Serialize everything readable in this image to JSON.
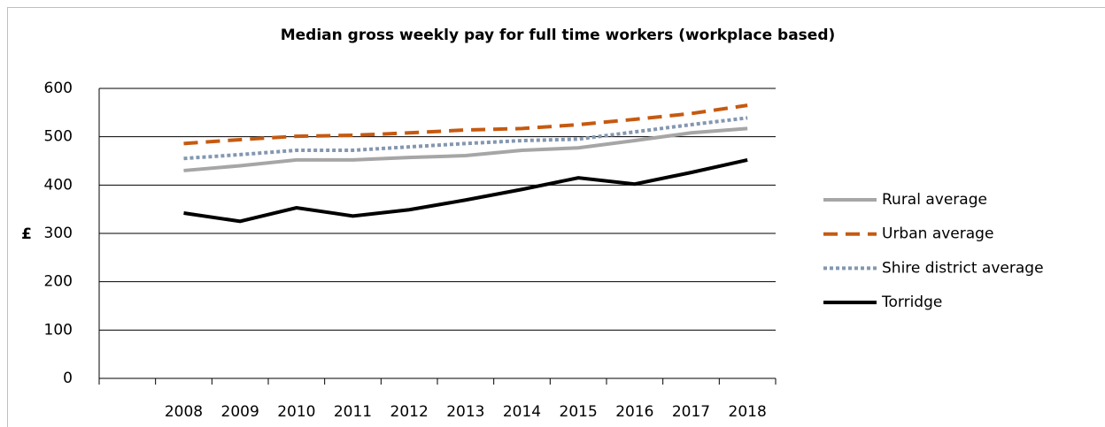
{
  "chart_data": {
    "type": "line",
    "title": "Median gross weekly pay for full time workers (workplace based)",
    "y_label": "£",
    "categories": [
      null,
      "2008",
      "2009",
      "2010",
      "2011",
      "2012",
      "2013",
      "2014",
      "2015",
      "2016",
      "2017",
      "2018"
    ],
    "series": [
      {
        "name": "Rural average",
        "color": "#a6a6a6",
        "dash": "solid",
        "values": [
          null,
          430,
          440,
          452,
          452,
          457,
          461,
          472,
          477,
          492,
          508,
          517
        ]
      },
      {
        "name": "Urban average",
        "color": "#c55a11",
        "dash": "dashed",
        "values": [
          null,
          486,
          494,
          501,
          503,
          508,
          514,
          517,
          525,
          536,
          548,
          565
        ]
      },
      {
        "name": "Shire district average",
        "color": "#8497b0",
        "dash": "dotted",
        "values": [
          null,
          455,
          463,
          472,
          472,
          479,
          486,
          492,
          495,
          510,
          525,
          539
        ]
      },
      {
        "name": "Torridge",
        "color": "#000000",
        "dash": "solid",
        "values": [
          null,
          342,
          325,
          353,
          336,
          349,
          369,
          391,
          415,
          402,
          426,
          452
        ]
      }
    ],
    "ylim": [
      0,
      600
    ],
    "yticks": [
      0,
      100,
      200,
      300,
      400,
      500,
      600
    ],
    "grid": true,
    "legend": "right"
  }
}
